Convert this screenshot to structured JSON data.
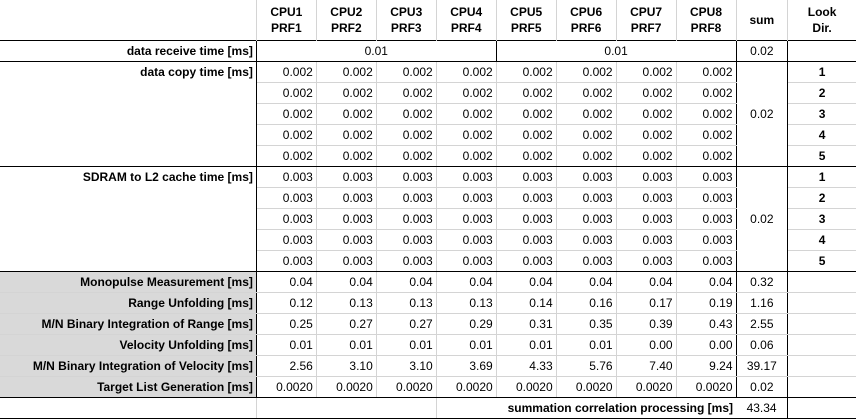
{
  "header": {
    "cpus": [
      "CPU1",
      "CPU2",
      "CPU3",
      "CPU4",
      "CPU5",
      "CPU6",
      "CPU7",
      "CPU8"
    ],
    "prfs": [
      "PRF1",
      "PRF2",
      "PRF3",
      "PRF4",
      "PRF5",
      "PRF6",
      "PRF7",
      "PRF8"
    ],
    "sum": "sum",
    "look_line1": "Look",
    "look_line2": "Dir."
  },
  "receive": {
    "label": "data receive time [ms]",
    "group1": "0.01",
    "group2": "0.01",
    "sum": "0.02"
  },
  "copy": {
    "label": "data copy time [ms]",
    "rows": [
      [
        "0.002",
        "0.002",
        "0.002",
        "0.002",
        "0.002",
        "0.002",
        "0.002",
        "0.002"
      ],
      [
        "0.002",
        "0.002",
        "0.002",
        "0.002",
        "0.002",
        "0.002",
        "0.002",
        "0.002"
      ],
      [
        "0.002",
        "0.002",
        "0.002",
        "0.002",
        "0.002",
        "0.002",
        "0.002",
        "0.002"
      ],
      [
        "0.002",
        "0.002",
        "0.002",
        "0.002",
        "0.002",
        "0.002",
        "0.002",
        "0.002"
      ],
      [
        "0.002",
        "0.002",
        "0.002",
        "0.002",
        "0.002",
        "0.002",
        "0.002",
        "0.002"
      ]
    ],
    "sum": "0.02",
    "looks": [
      "1",
      "2",
      "3",
      "4",
      "5"
    ]
  },
  "sdram": {
    "label": "SDRAM to L2 cache time [ms]",
    "rows": [
      [
        "0.003",
        "0.003",
        "0.003",
        "0.003",
        "0.003",
        "0.003",
        "0.003",
        "0.003"
      ],
      [
        "0.003",
        "0.003",
        "0.003",
        "0.003",
        "0.003",
        "0.003",
        "0.003",
        "0.003"
      ],
      [
        "0.003",
        "0.003",
        "0.003",
        "0.003",
        "0.003",
        "0.003",
        "0.003",
        "0.003"
      ],
      [
        "0.003",
        "0.003",
        "0.003",
        "0.003",
        "0.003",
        "0.003",
        "0.003",
        "0.003"
      ],
      [
        "0.003",
        "0.003",
        "0.003",
        "0.003",
        "0.003",
        "0.003",
        "0.003",
        "0.003"
      ]
    ],
    "sum": "0.02",
    "looks": [
      "1",
      "2",
      "3",
      "4",
      "5"
    ]
  },
  "processing": [
    {
      "label": "Monopulse Measurement [ms]",
      "values": [
        "0.04",
        "0.04",
        "0.04",
        "0.04",
        "0.04",
        "0.04",
        "0.04",
        "0.04"
      ],
      "sum": "0.32"
    },
    {
      "label": "Range Unfolding [ms]",
      "values": [
        "0.12",
        "0.13",
        "0.13",
        "0.13",
        "0.14",
        "0.16",
        "0.17",
        "0.19"
      ],
      "sum": "1.16"
    },
    {
      "label": "M/N Binary Integration of Range [ms]",
      "values": [
        "0.25",
        "0.27",
        "0.27",
        "0.29",
        "0.31",
        "0.35",
        "0.39",
        "0.43"
      ],
      "sum": "2.55"
    },
    {
      "label": "Velocity Unfolding [ms]",
      "values": [
        "0.01",
        "0.01",
        "0.01",
        "0.01",
        "0.01",
        "0.01",
        "0.00",
        "0.00"
      ],
      "sum": "0.06"
    },
    {
      "label": "M/N Binary Integration of Velocity [ms]",
      "values": [
        "2.56",
        "3.10",
        "3.10",
        "3.69",
        "4.33",
        "5.76",
        "7.40",
        "9.24"
      ],
      "sum": "39.17"
    },
    {
      "label": "Target List Generation [ms]",
      "values": [
        "0.0020",
        "0.0020",
        "0.0020",
        "0.0020",
        "0.0020",
        "0.0020",
        "0.0020",
        "0.0020"
      ],
      "sum": "0.02"
    }
  ],
  "total": {
    "label": "summation correlation processing [ms]",
    "value": "43.34"
  }
}
